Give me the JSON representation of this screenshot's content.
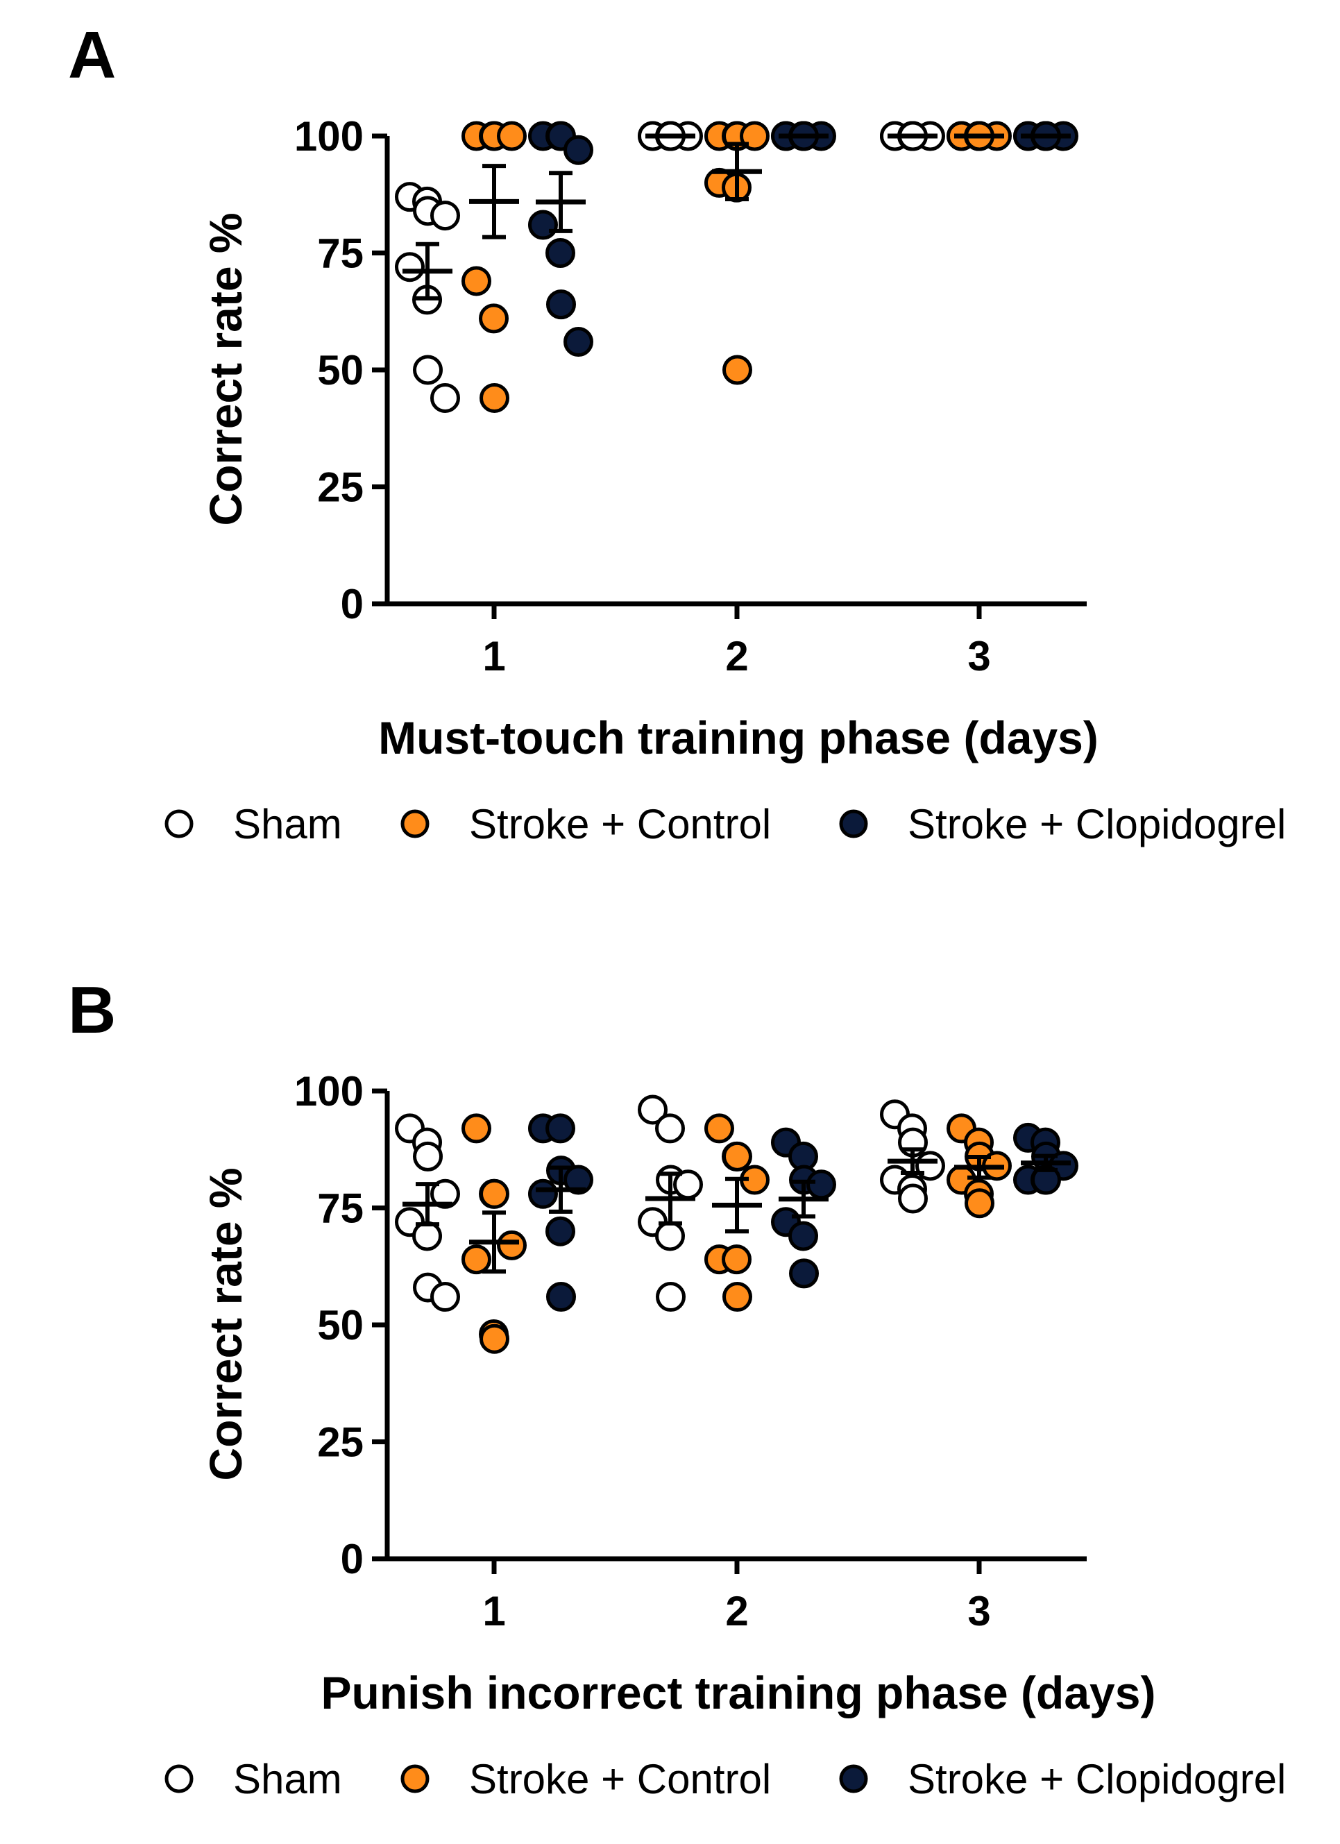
{
  "colors": {
    "sham": "#ffffff",
    "control": "#ff8c1a",
    "clopidogrel": "#0b1a3a",
    "stroke": "#000000"
  },
  "legend": [
    {
      "key": "sham",
      "label": "Sham"
    },
    {
      "key": "control",
      "label": "Stroke + Control"
    },
    {
      "key": "clopidogrel",
      "label": "Stroke + Clopidogrel"
    }
  ],
  "chart_data": [
    {
      "panel": "A",
      "type": "scatter",
      "xlabel": "Must-touch training phase (days)",
      "ylabel": "Correct rate %",
      "ylim": [
        0,
        100
      ],
      "yticks": [
        0,
        25,
        50,
        75,
        100
      ],
      "categories": [
        "1",
        "2",
        "3"
      ],
      "series": [
        {
          "key": "sham",
          "name": "Sham",
          "groups": [
            {
              "day": "1",
              "values": [
                87,
                86,
                84,
                83,
                72,
                65,
                50,
                44
              ],
              "mean": 71.1,
              "sem": 5.8
            },
            {
              "day": "2",
              "values": [
                100,
                100,
                100,
                100,
                100,
                100,
                100
              ],
              "mean": 100,
              "sem": 0
            },
            {
              "day": "3",
              "values": [
                100,
                100,
                100,
                100,
                100,
                100,
                100
              ],
              "mean": 100,
              "sem": 0
            }
          ]
        },
        {
          "key": "control",
          "name": "Stroke + Control",
          "groups": [
            {
              "day": "1",
              "values": [
                100,
                100,
                100,
                100,
                69,
                61,
                44
              ],
              "mean": 86,
              "sem": 7.6
            },
            {
              "day": "2",
              "values": [
                100,
                100,
                100,
                100,
                90,
                89,
                50
              ],
              "mean": 92.4,
              "sem": 5.9
            },
            {
              "day": "3",
              "values": [
                100,
                100,
                100,
                100,
                100,
                100,
                100
              ],
              "mean": 100,
              "sem": 0
            }
          ]
        },
        {
          "key": "clopidogrel",
          "name": "Stroke + Clopidogrel",
          "groups": [
            {
              "day": "1",
              "values": [
                100,
                100,
                100,
                97,
                81,
                75,
                64,
                56
              ],
              "mean": 85.9,
              "sem": 6.2
            },
            {
              "day": "2",
              "values": [
                100,
                100,
                100,
                100,
                100,
                100,
                100
              ],
              "mean": 100,
              "sem": 0
            },
            {
              "day": "3",
              "values": [
                100,
                100,
                100,
                100,
                100,
                100,
                100
              ],
              "mean": 100,
              "sem": 0
            }
          ]
        }
      ]
    },
    {
      "panel": "B",
      "type": "scatter",
      "xlabel": "Punish incorrect training phase (days)",
      "ylabel": "Correct rate %",
      "ylim": [
        0,
        100
      ],
      "yticks": [
        0,
        25,
        50,
        75,
        100
      ],
      "categories": [
        "1",
        "2",
        "3"
      ],
      "series": [
        {
          "key": "sham",
          "name": "Sham",
          "groups": [
            {
              "day": "1",
              "values": [
                92,
                89,
                86,
                78,
                72,
                69,
                58,
                56
              ],
              "mean": 75.8,
              "sem": 4.3
            },
            {
              "day": "2",
              "values": [
                96,
                92,
                81,
                80,
                72,
                69,
                56
              ],
              "mean": 77,
              "sem": 5.3
            },
            {
              "day": "3",
              "values": [
                95,
                92,
                89,
                84,
                81,
                79,
                77
              ],
              "mean": 85,
              "sem": 2.5
            }
          ]
        },
        {
          "key": "control",
          "name": "Stroke + Control",
          "groups": [
            {
              "day": "1",
              "values": [
                92,
                78,
                78,
                67,
                64,
                48,
                47
              ],
              "mean": 67.7,
              "sem": 6.3
            },
            {
              "day": "2",
              "values": [
                92,
                86,
                86,
                81,
                64,
                64,
                56
              ],
              "mean": 75.6,
              "sem": 5.6
            },
            {
              "day": "3",
              "values": [
                92,
                89,
                86,
                84,
                81,
                78,
                76
              ],
              "mean": 83.7,
              "sem": 2.2
            }
          ]
        },
        {
          "key": "clopidogrel",
          "name": "Stroke + Clopidogrel",
          "groups": [
            {
              "day": "1",
              "values": [
                92,
                92,
                83,
                81,
                78,
                70,
                56
              ],
              "mean": 78.9,
              "sem": 4.7
            },
            {
              "day": "2",
              "values": [
                89,
                86,
                81,
                80,
                72,
                69,
                61
              ],
              "mean": 76.9,
              "sem": 3.7
            },
            {
              "day": "3",
              "values": [
                90,
                89,
                86,
                84,
                81,
                81,
                81
              ],
              "mean": 84.6,
              "sem": 1.5
            }
          ]
        }
      ]
    }
  ]
}
